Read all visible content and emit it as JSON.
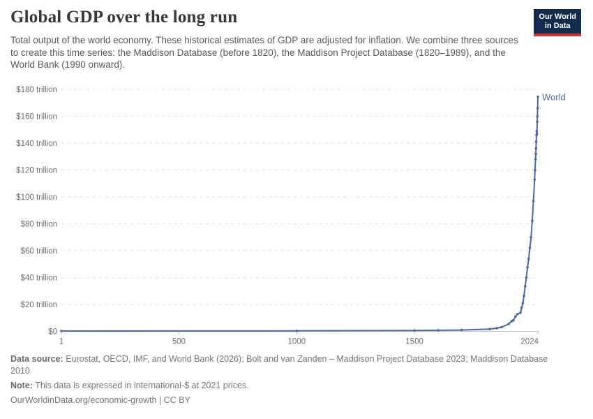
{
  "header": {
    "title": "Global GDP over the long run",
    "subtitle": "Total output of the world economy. These historical estimates of GDP are adjusted for inflation. We combine three sources to create this time series: the Maddison Database (before 1820), the Maddison Project Database (1820–1989), and the World Bank (1990 onward)."
  },
  "logo": {
    "line1": "Our World",
    "line2": "in Data",
    "bg_color": "#132c4e",
    "bar_color": "#d0342c"
  },
  "chart_data": {
    "type": "line",
    "title": "Global GDP over the long run",
    "xlim": [
      1,
      2024
    ],
    "ylim": [
      0,
      180
    ],
    "grid": "horizontal-dashed",
    "legend": "series-end-label",
    "colors": {
      "line": "#4a69a4",
      "gridline": "#e1e1e1",
      "axis": "#c4c4c4",
      "tick_label": "#6e6e6e"
    },
    "x_ticks": [
      {
        "v": 1,
        "label": "1"
      },
      {
        "v": 500,
        "label": "500"
      },
      {
        "v": 1000,
        "label": "1000"
      },
      {
        "v": 1500,
        "label": "1500"
      },
      {
        "v": 2024,
        "label": "2024"
      }
    ],
    "y_ticks": [
      {
        "v": 0,
        "label": "$0"
      },
      {
        "v": 20,
        "label": "$20 trillion"
      },
      {
        "v": 40,
        "label": "$40 trillion"
      },
      {
        "v": 60,
        "label": "$60 trillion"
      },
      {
        "v": 80,
        "label": "$80 trillion"
      },
      {
        "v": 100,
        "label": "$100 trillion"
      },
      {
        "v": 120,
        "label": "$120 trillion"
      },
      {
        "v": 140,
        "label": "$140 trillion"
      },
      {
        "v": 160,
        "label": "$160 trillion"
      },
      {
        "v": 180,
        "label": "$180 trillion"
      }
    ],
    "series": [
      {
        "name": "World",
        "color": "#4a69a4",
        "unit": "trillion international-$ at 2021 prices",
        "points": [
          [
            1,
            0.25
          ],
          [
            1000,
            0.35
          ],
          [
            1500,
            0.6
          ],
          [
            1600,
            0.8
          ],
          [
            1700,
            1.0
          ],
          [
            1820,
            1.7
          ],
          [
            1850,
            2.4
          ],
          [
            1870,
            3.1
          ],
          [
            1900,
            5.5
          ],
          [
            1913,
            7.6
          ],
          [
            1920,
            8.2
          ],
          [
            1929,
            11
          ],
          [
            1938,
            13
          ],
          [
            1950,
            13.9
          ],
          [
            1955,
            17.5
          ],
          [
            1960,
            21
          ],
          [
            1965,
            26.5
          ],
          [
            1970,
            33.5
          ],
          [
            1975,
            40
          ],
          [
            1980,
            47.5
          ],
          [
            1985,
            54
          ],
          [
            1990,
            62
          ],
          [
            1995,
            70
          ],
          [
            2000,
            82
          ],
          [
            2005,
            97
          ],
          [
            2010,
            113
          ],
          [
            2012,
            120
          ],
          [
            2014,
            128
          ],
          [
            2015,
            132
          ],
          [
            2016,
            136
          ],
          [
            2017,
            141
          ],
          [
            2018,
            146
          ],
          [
            2019,
            149
          ],
          [
            2020,
            147
          ],
          [
            2021,
            156
          ],
          [
            2022,
            160
          ],
          [
            2023,
            166
          ],
          [
            2024,
            174.5
          ]
        ]
      }
    ]
  },
  "footer": {
    "data_source_label": "Data source:",
    "data_source_text": " Eurostat, OECD, IMF, and World Bank (2026); Bolt and van Zanden – Maddison Project Database 2023; Maddison Database 2010",
    "note_label": "Note:",
    "note_text": " This data is expressed in international-$ at 2021 prices.",
    "license_line": "OurWorldinData.org/economic-growth | CC BY"
  }
}
